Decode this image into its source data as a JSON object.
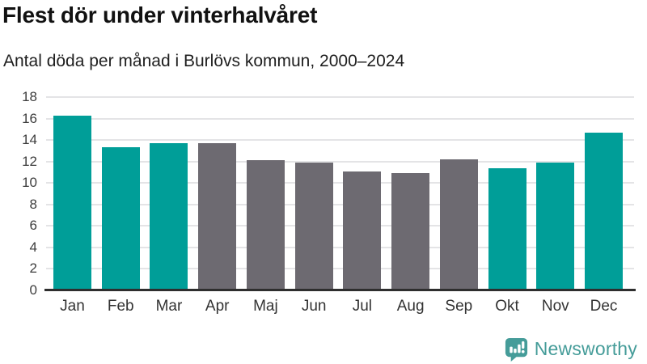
{
  "header": {
    "title": "Flest dör under vinterhalvåret",
    "subtitle": "Antal döda per månad i Burlövs kommun, 2000–2024"
  },
  "chart_data": {
    "type": "bar",
    "title": "Flest dör under vinterhalvåret",
    "subtitle": "Antal döda per månad i Burlövs kommun, 2000–2024",
    "categories": [
      "Jan",
      "Feb",
      "Mar",
      "Apr",
      "Maj",
      "Jun",
      "Jul",
      "Aug",
      "Sep",
      "Okt",
      "Nov",
      "Dec"
    ],
    "values": [
      16.3,
      13.3,
      13.7,
      13.7,
      12.1,
      11.9,
      11.1,
      10.9,
      12.2,
      11.4,
      11.9,
      14.7
    ],
    "groups": [
      "winter",
      "winter",
      "winter",
      "summer",
      "summer",
      "summer",
      "summer",
      "summer",
      "summer",
      "winter",
      "winter",
      "winter"
    ],
    "colors": {
      "winter": "#009e98",
      "summer": "#6d6a71"
    },
    "xlabel": "",
    "ylabel": "",
    "ylim": [
      0,
      18
    ],
    "yticks": [
      0,
      2,
      4,
      6,
      8,
      10,
      12,
      14,
      16,
      18
    ],
    "grid": "horizontal",
    "legend": "none",
    "gridline_color": "#e4e4e6",
    "axis_line_color": "#2e2e2e"
  },
  "footer": {
    "brand": "Newsworthy",
    "brand_color": "#459c99",
    "logo_icon": "newsworthy-speech-bubble-bar-chart-icon"
  }
}
